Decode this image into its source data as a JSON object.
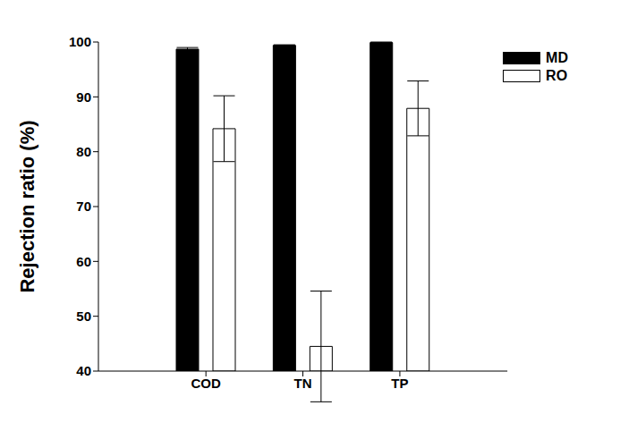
{
  "chart_data": {
    "type": "bar",
    "y_label": "Rejection ratio (%)",
    "categories": [
      "COD",
      "TN",
      "TP"
    ],
    "series": [
      {
        "name": "MD",
        "color": "#000000",
        "values": [
          98.7,
          99.4,
          99.9
        ],
        "errors": [
          0.3,
          0.1,
          0.1
        ]
      },
      {
        "name": "RO",
        "color": "#ffffff",
        "values": [
          84.2,
          44.5,
          87.9
        ],
        "errors": [
          6.0,
          10.1,
          5.0
        ]
      }
    ],
    "ylim": [
      40,
      100
    ],
    "yticks": [
      40,
      50,
      60,
      70,
      80,
      90,
      100
    ],
    "legend": "upper right",
    "grid": false
  }
}
